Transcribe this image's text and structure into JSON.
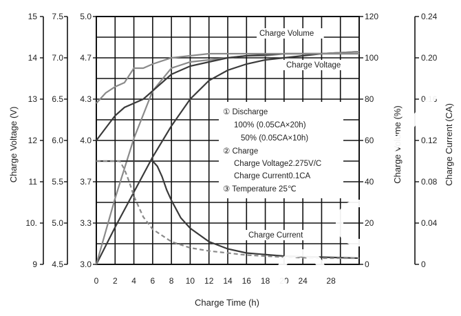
{
  "chart_data": {
    "type": "line",
    "title": "",
    "xlabel": "Charge Time (h)",
    "x_ticks": [
      "0",
      "2",
      "4",
      "6",
      "8",
      "10",
      "12",
      "14",
      "16",
      "18",
      "20",
      "24",
      "28"
    ],
    "x_range": [
      0,
      28
    ],
    "grid": true,
    "left_axes": [
      {
        "label": "Charge Voltage (V)",
        "ticks": [
          "9",
          "10.",
          "11",
          "12",
          "13",
          "14",
          "15"
        ]
      },
      {
        "label": "",
        "ticks": [
          "4.5",
          "5.0",
          "5.5",
          "6.0",
          "6.5",
          "7.0",
          "7.5"
        ]
      },
      {
        "label": "",
        "ticks": [
          "3.0",
          "3.3",
          "3.7",
          "4.0",
          "4.3",
          "4.7",
          "5.0"
        ]
      }
    ],
    "right_axes": [
      {
        "label": "Charge Volume (%)",
        "ticks": [
          "0",
          "20",
          "40",
          "60",
          "80",
          "100",
          "120"
        ]
      },
      {
        "label": "Charge Current (CA)",
        "ticks": [
          "0",
          "0.04",
          "0.08",
          "0.12",
          "0.16",
          "0.20",
          "0.24"
        ]
      }
    ],
    "series": [
      {
        "name": "Charge Volume",
        "unit": "%",
        "style": "dark-solid",
        "x": [
          0,
          2,
          4,
          6,
          8,
          10,
          12,
          14,
          16,
          18,
          20,
          24,
          28
        ],
        "y": [
          0,
          18,
          35,
          52,
          67,
          80,
          89,
          94,
          97,
          99,
          100,
          102,
          103
        ]
      },
      {
        "name": "Charge Volume",
        "unit": "%",
        "style": "light-solid",
        "x": [
          0,
          2,
          4,
          6,
          8,
          10,
          12,
          14,
          16,
          18,
          20,
          24,
          28
        ],
        "y": [
          0,
          32,
          61,
          84,
          95,
          98,
          99,
          100,
          101,
          101,
          102,
          102,
          103
        ]
      },
      {
        "name": "Charge Voltage",
        "unit": "V",
        "style": "dark-solid",
        "x": [
          0,
          1,
          2,
          3,
          4,
          5,
          6,
          8,
          10,
          12,
          14,
          16,
          20,
          24,
          28
        ],
        "y": [
          12.0,
          12.3,
          12.6,
          12.8,
          12.9,
          13.0,
          13.2,
          13.6,
          13.8,
          13.9,
          14.0,
          14.05,
          14.1,
          14.1,
          14.1
        ]
      },
      {
        "name": "Charge Voltage",
        "unit": "V",
        "style": "light-solid",
        "x": [
          0,
          1,
          2,
          3,
          4,
          5,
          6,
          8,
          10,
          12,
          14,
          16,
          20,
          24,
          28
        ],
        "y": [
          12.9,
          13.15,
          13.3,
          13.4,
          13.75,
          13.75,
          13.85,
          14.0,
          14.05,
          14.1,
          14.1,
          14.1,
          14.1,
          14.1,
          14.1
        ]
      },
      {
        "name": "Charge Current",
        "unit": "CA",
        "style": "dark-solid",
        "x": [
          0,
          6,
          6.5,
          7,
          7.5,
          8,
          9,
          10,
          12,
          14,
          16,
          20,
          24,
          28
        ],
        "y": [
          0.1,
          0.1,
          0.095,
          0.085,
          0.072,
          0.062,
          0.045,
          0.035,
          0.022,
          0.015,
          0.011,
          0.008,
          0.007,
          0.006
        ]
      },
      {
        "name": "Charge Current",
        "unit": "CA",
        "style": "light-dashed",
        "x": [
          0,
          2.5,
          3,
          3.5,
          4,
          5,
          6,
          8,
          10,
          12,
          16,
          20,
          24,
          28
        ],
        "y": [
          0.1,
          0.1,
          0.092,
          0.08,
          0.066,
          0.046,
          0.034,
          0.022,
          0.016,
          0.013,
          0.009,
          0.007,
          0.006,
          0.006
        ]
      }
    ],
    "curve_labels": [
      "Charge Volume",
      "Charge Voltage",
      "Charge Current"
    ],
    "annotations": [
      "① Discharge",
      "100% (0.05CA×20h)",
      "50% (0.05CA×10h)",
      "② Charge",
      "Charge Voltage2.275V/C",
      "Charge Current0.1CA",
      "③ Temperature 25℃"
    ]
  }
}
